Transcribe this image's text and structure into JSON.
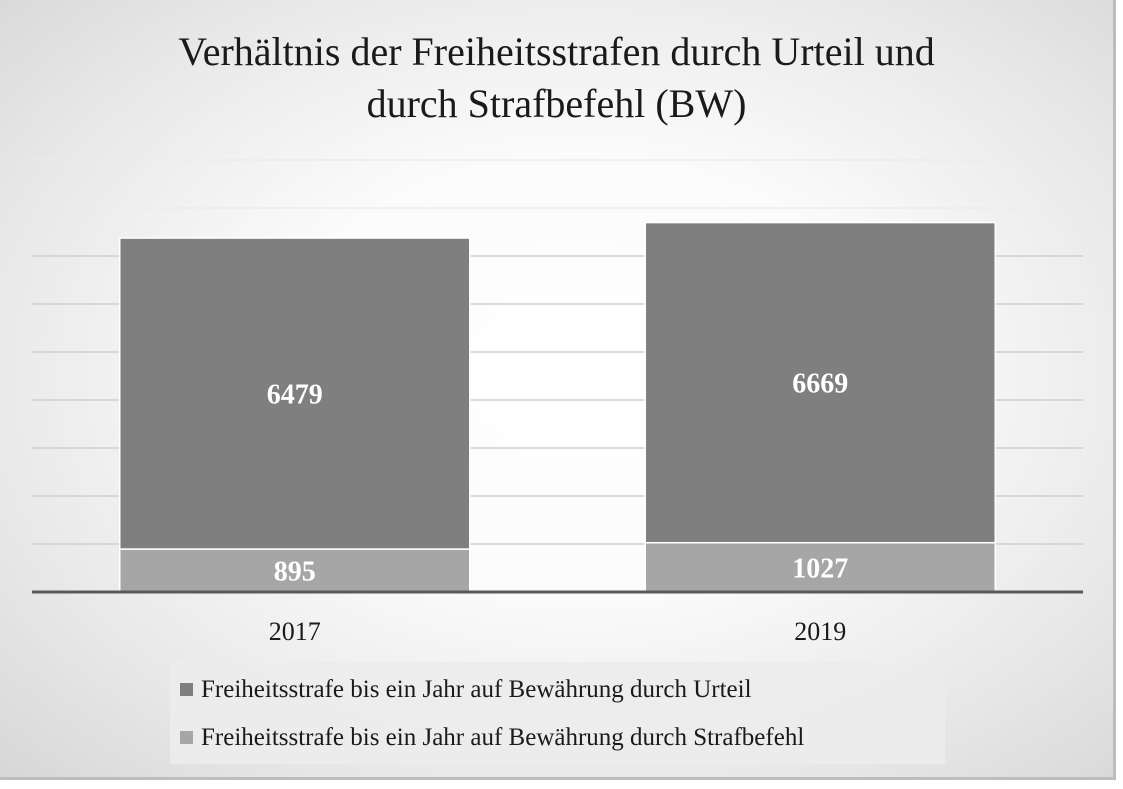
{
  "chart_data": {
    "type": "bar",
    "stacked": true,
    "title": "Verhältnis der Freiheitsstrafen durch Urteil und durch Strafbefehl (BW)",
    "title_lines": [
      "Verhältnis der Freiheitsstrafen durch Urteil und",
      "durch Strafbefehl (BW)"
    ],
    "categories": [
      "2017",
      "2019"
    ],
    "series": [
      {
        "name": "Freiheitsstrafe bis ein Jahr auf Bewährung durch Strafbefehl",
        "values": [
          895,
          1027
        ],
        "color": "#a6a6a6"
      },
      {
        "name": "Freiheitsstrafe bis ein Jahr auf Bewährung durch Urteil",
        "values": [
          6479,
          6669
        ],
        "color": "#7f7f7f"
      }
    ],
    "legend_order": [
      1,
      0
    ],
    "ylim": [
      0,
      9000
    ],
    "grid": true,
    "legend_position": "bottom",
    "data_label_color": "#ffffff"
  }
}
